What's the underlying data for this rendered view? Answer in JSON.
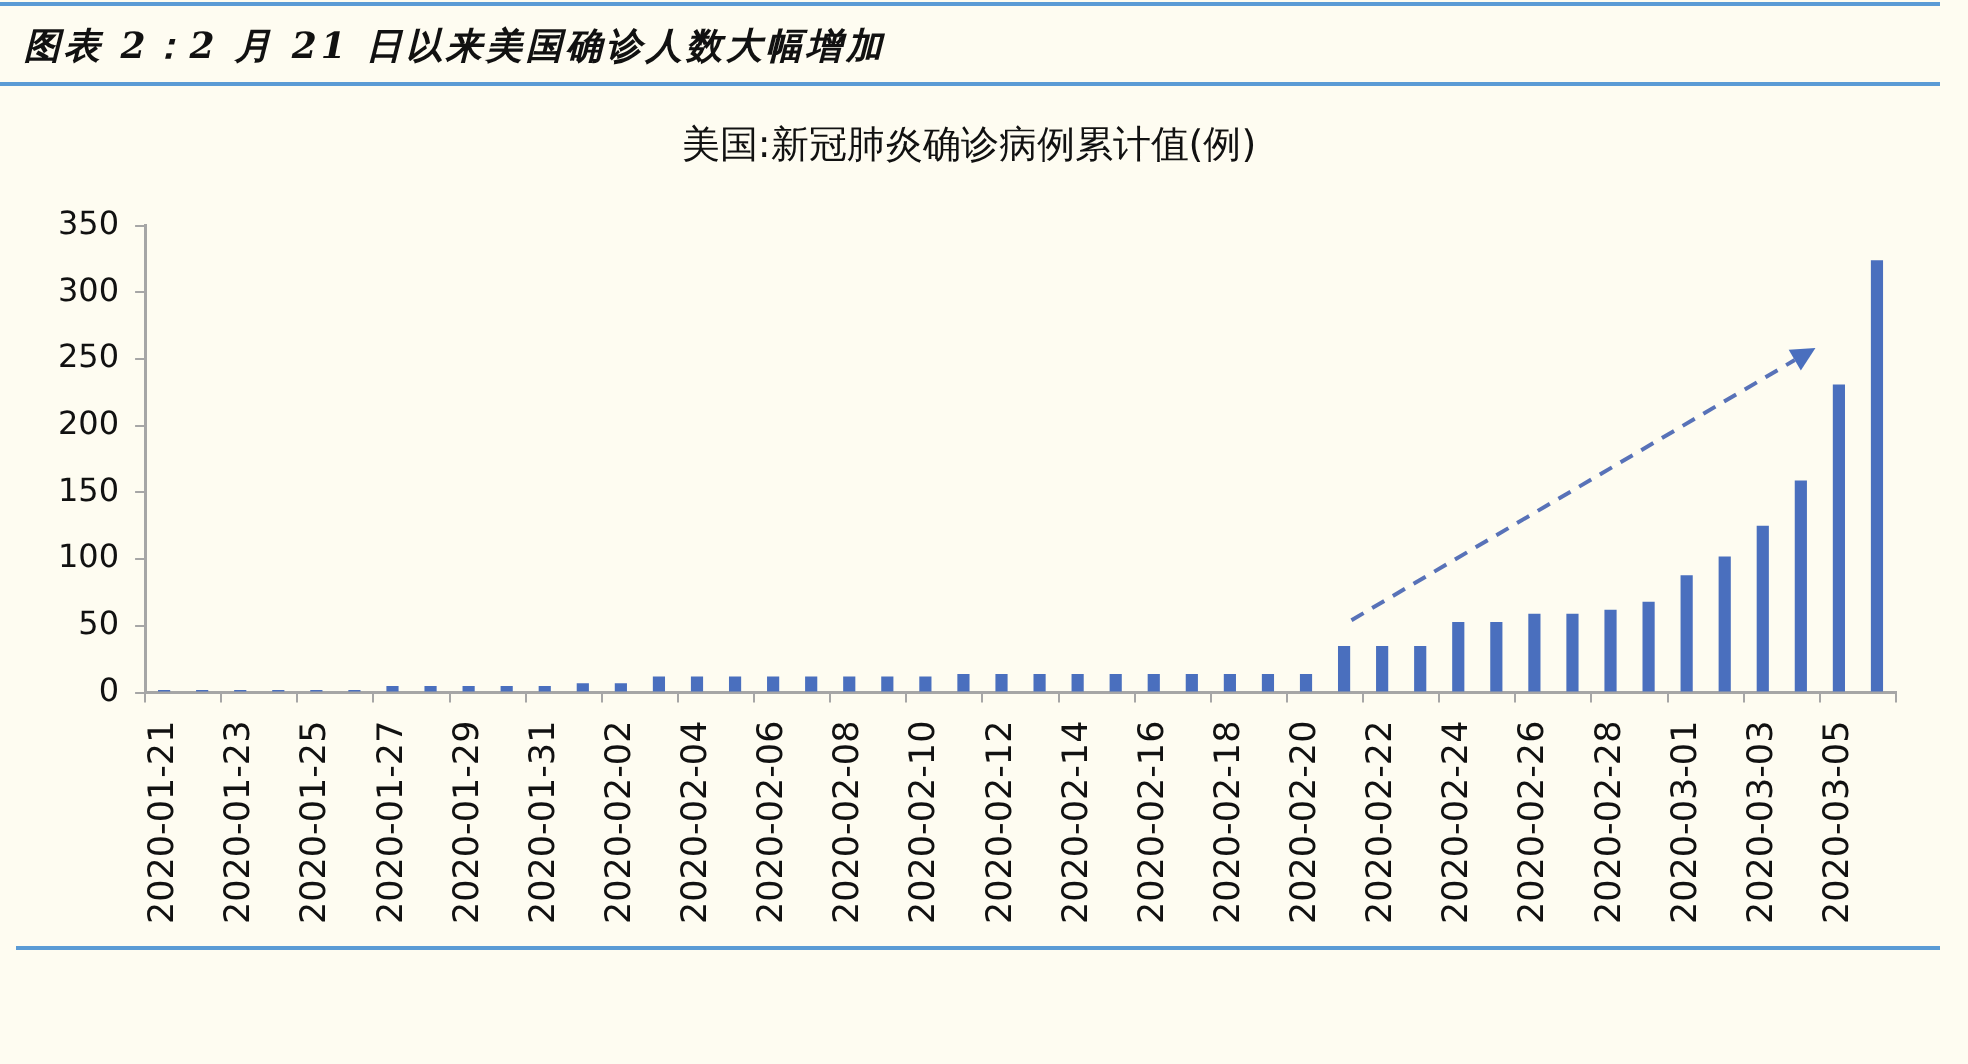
{
  "chart_data": {
    "type": "bar",
    "title": "图表 2：2 月 21 日以来美国确诊人数大幅增加",
    "subtitle": "美国:新冠肺炎确诊病例累计值(例)",
    "categories": [
      "2020-01-21",
      null,
      "2020-01-23",
      null,
      "2020-01-25",
      null,
      "2020-01-27",
      null,
      "2020-01-29",
      null,
      "2020-01-31",
      null,
      "2020-02-02",
      null,
      "2020-02-04",
      null,
      "2020-02-06",
      null,
      "2020-02-08",
      null,
      "2020-02-10",
      null,
      "2020-02-12",
      null,
      "2020-02-14",
      null,
      "2020-02-16",
      null,
      "2020-02-18",
      null,
      "2020-02-20",
      null,
      "2020-02-22",
      null,
      "2020-02-24",
      null,
      "2020-02-26",
      null,
      "2020-02-28",
      null,
      "2020-03-01",
      null,
      "2020-03-03",
      null,
      "2020-03-05",
      null
    ],
    "values": [
      2,
      2,
      2,
      2,
      2,
      2,
      5,
      5,
      5,
      5,
      5,
      7,
      7,
      12,
      12,
      12,
      12,
      12,
      12,
      12,
      12,
      14,
      14,
      14,
      14,
      14,
      14,
      14,
      14,
      14,
      14,
      35,
      35,
      35,
      53,
      53,
      59,
      59,
      62,
      68,
      88,
      102,
      125,
      159,
      231,
      324
    ],
    "color": "#4a6fbe",
    "ylim": [
      0,
      350
    ],
    "yticks": [
      0,
      50,
      100,
      150,
      200,
      250,
      300,
      350
    ],
    "grid": false,
    "legend": false
  }
}
